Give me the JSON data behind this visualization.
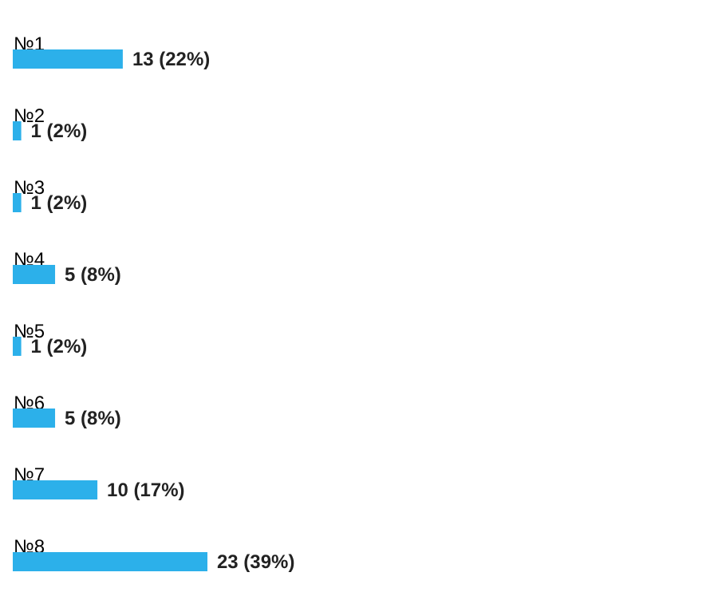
{
  "chart_data": {
    "type": "bar",
    "orientation": "horizontal",
    "categories": [
      "№1",
      "№2",
      "№3",
      "№4",
      "№5",
      "№6",
      "№7",
      "№8"
    ],
    "values": [
      13,
      1,
      1,
      5,
      1,
      5,
      10,
      23
    ],
    "color": "#2cb0ea",
    "value_labels": [
      "13 (22%)",
      "1 (2%)",
      "1 (2%)",
      "5 (8%)",
      "1 (2%)",
      "5 (8%)",
      "10 (17%)",
      "23 (39%)"
    ]
  }
}
